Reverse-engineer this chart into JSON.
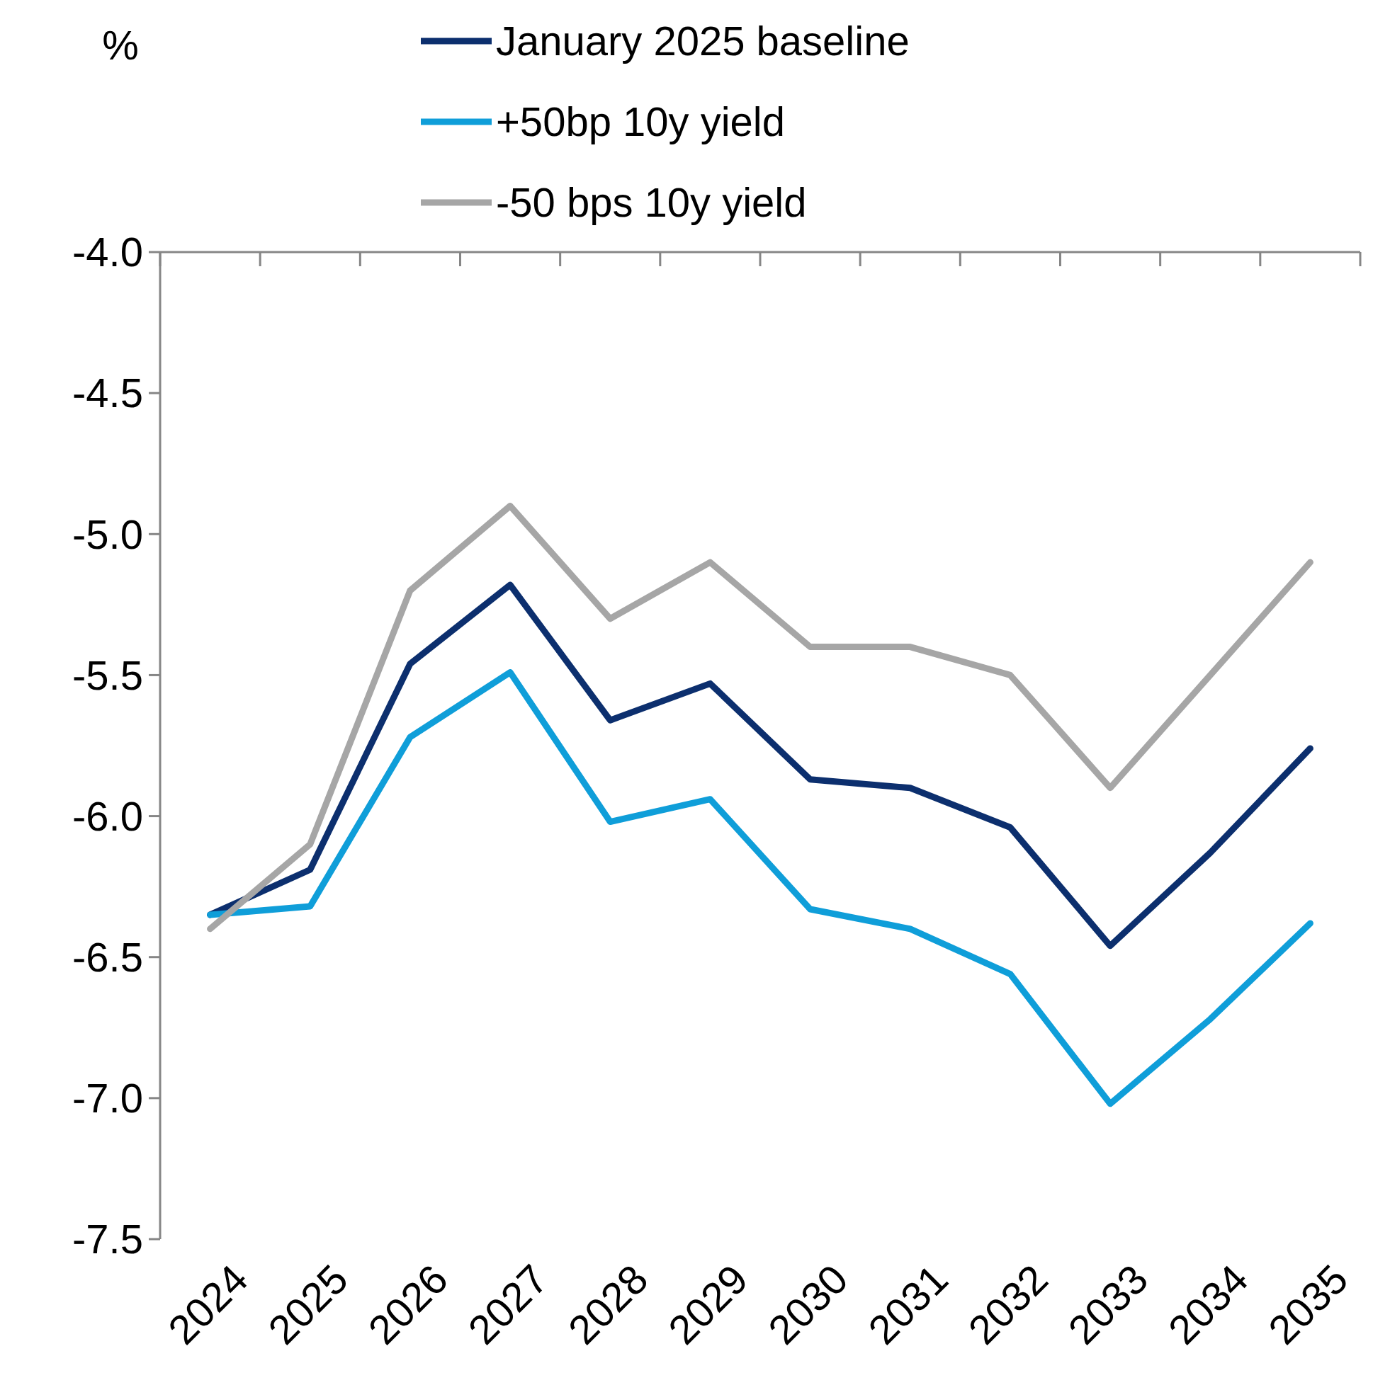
{
  "chart_data": {
    "type": "line",
    "ylabel": "%",
    "categories": [
      "2024",
      "2025",
      "2026",
      "2027",
      "2028",
      "2029",
      "2030",
      "2031",
      "2032",
      "2033",
      "2034",
      "2035"
    ],
    "series": [
      {
        "name": "January 2025 baseline",
        "color": "#0c2f6e",
        "values": [
          -6.35,
          -6.19,
          -5.46,
          -5.18,
          -5.66,
          -5.53,
          -5.87,
          -5.9,
          -6.04,
          -6.46,
          -6.13,
          -5.76
        ]
      },
      {
        "name": "+50bp 10y yield",
        "color": "#0f9ed9",
        "values": [
          -6.35,
          -6.32,
          -5.72,
          -5.49,
          -6.02,
          -5.94,
          -6.33,
          -6.4,
          -6.56,
          -7.02,
          -6.72,
          -6.38
        ]
      },
      {
        "name": "-50 bps 10y yield",
        "color": "#a6a6a6",
        "values": [
          -6.4,
          -6.1,
          -5.2,
          -4.9,
          -5.3,
          -5.1,
          -5.4,
          -5.4,
          -5.5,
          -5.9,
          -5.5,
          -5.1
        ]
      }
    ],
    "ylim": [
      -7.5,
      -4.0
    ],
    "yticks": [
      {
        "value": -4,
        "label": "-4.0"
      },
      {
        "value": -4.5,
        "label": "-4.5"
      },
      {
        "value": -5,
        "label": "-5.0"
      },
      {
        "value": -5.5,
        "label": "-5.5"
      },
      {
        "value": -6,
        "label": "-6.0"
      },
      {
        "value": -6.5,
        "label": "-6.5"
      },
      {
        "value": -7,
        "label": "-7.0"
      },
      {
        "value": -7.5,
        "label": "-7.5"
      }
    ],
    "legend": "top",
    "grid": false,
    "marker": "none",
    "line_style": "solid"
  }
}
